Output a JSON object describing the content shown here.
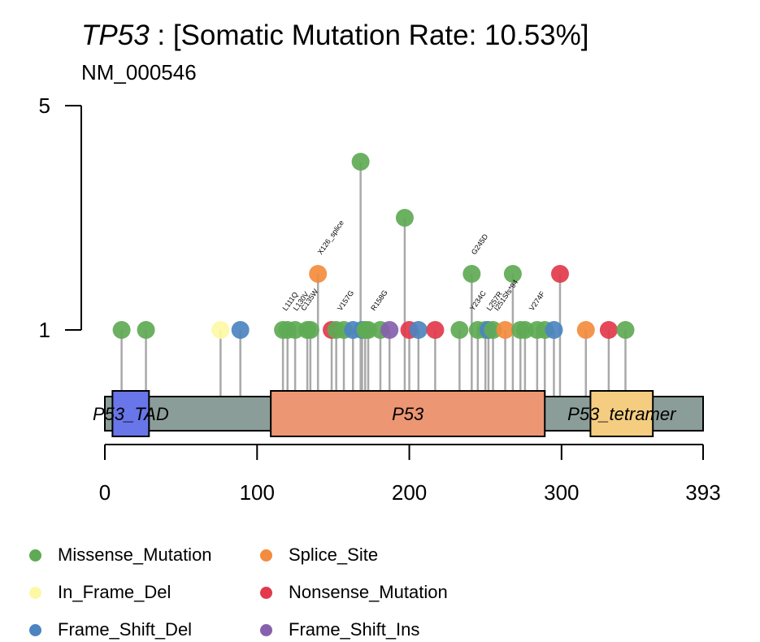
{
  "title": {
    "gene": "TP53",
    "rest": " : [Somatic Mutation Rate: 10.53%]"
  },
  "subtitle": "NM_000546",
  "colors": {
    "Missense_Mutation": "#5faa55",
    "Splice_Site": "#f48b3e",
    "In_Frame_Del": "#fdf8a6",
    "Nonsense_Mutation": "#e2394c",
    "Frame_Shift_Del": "#4c84c0",
    "Frame_Shift_Ins": "#8660ad",
    "backbone": "#8b9d99",
    "stem": "#a9a9a9"
  },
  "legend": [
    {
      "label": "Missense_Mutation",
      "key": "Missense_Mutation"
    },
    {
      "label": "Splice_Site",
      "key": "Splice_Site"
    },
    {
      "label": "In_Frame_Del",
      "key": "In_Frame_Del"
    },
    {
      "label": "Nonsense_Mutation",
      "key": "Nonsense_Mutation"
    },
    {
      "label": "Frame_Shift_Del",
      "key": "Frame_Shift_Del"
    },
    {
      "label": "Frame_Shift_Ins",
      "key": "Frame_Shift_Ins"
    }
  ],
  "chart_data": {
    "type": "lollipop",
    "protein_length": 393,
    "x_ticks": [
      0,
      100,
      200,
      300,
      393
    ],
    "y_ticks": [
      1,
      5
    ],
    "ylim": [
      1,
      5
    ],
    "domains": [
      {
        "label": "P53_TAD",
        "start": 5,
        "end": 29,
        "color": "#6876ea"
      },
      {
        "label": "P53",
        "start": 109,
        "end": 289,
        "color": "#ec9674"
      },
      {
        "label": "P53_tetramer",
        "start": 319,
        "end": 360,
        "color": "#f4cd80"
      }
    ],
    "mutations": [
      {
        "pos": 11,
        "count": 1,
        "type": "Missense_Mutation"
      },
      {
        "pos": 27,
        "count": 1,
        "type": "Missense_Mutation"
      },
      {
        "pos": 76,
        "count": 1,
        "type": "In_Frame_Del"
      },
      {
        "pos": 89,
        "count": 1,
        "type": "Frame_Shift_Del"
      },
      {
        "pos": 117,
        "count": 1,
        "type": "Missense_Mutation"
      },
      {
        "pos": 120,
        "count": 1,
        "type": "Missense_Mutation"
      },
      {
        "pos": 125,
        "count": 1,
        "type": "Missense_Mutation"
      },
      {
        "pos": 133,
        "count": 1,
        "type": "Missense_Mutation"
      },
      {
        "pos": 135,
        "count": 1,
        "type": "Missense_Mutation"
      },
      {
        "pos": 140,
        "count": 2,
        "type": "Splice_Site"
      },
      {
        "pos": 149,
        "count": 1,
        "type": "Nonsense_Mutation"
      },
      {
        "pos": 152,
        "count": 1,
        "type": "Missense_Mutation"
      },
      {
        "pos": 157,
        "count": 1,
        "type": "Missense_Mutation"
      },
      {
        "pos": 163,
        "count": 1,
        "type": "Frame_Shift_Del"
      },
      {
        "pos": 168,
        "count": 4,
        "type": "Missense_Mutation"
      },
      {
        "pos": 169,
        "count": 1,
        "type": "Frame_Shift_Del"
      },
      {
        "pos": 171,
        "count": 1,
        "type": "Missense_Mutation"
      },
      {
        "pos": 173,
        "count": 1,
        "type": "Missense_Mutation"
      },
      {
        "pos": 181,
        "count": 1,
        "type": "Missense_Mutation"
      },
      {
        "pos": 187,
        "count": 1,
        "type": "Frame_Shift_Ins"
      },
      {
        "pos": 197,
        "count": 3,
        "type": "Missense_Mutation"
      },
      {
        "pos": 200,
        "count": 1,
        "type": "Nonsense_Mutation"
      },
      {
        "pos": 206,
        "count": 1,
        "type": "Frame_Shift_Del"
      },
      {
        "pos": 217,
        "count": 1,
        "type": "Nonsense_Mutation"
      },
      {
        "pos": 233,
        "count": 1,
        "type": "Missense_Mutation"
      },
      {
        "pos": 241,
        "count": 2,
        "type": "Missense_Mutation"
      },
      {
        "pos": 245,
        "count": 1,
        "type": "Missense_Mutation"
      },
      {
        "pos": 250,
        "count": 1,
        "type": "Missense_Mutation"
      },
      {
        "pos": 252,
        "count": 1,
        "type": "Frame_Shift_Del"
      },
      {
        "pos": 255,
        "count": 1,
        "type": "Missense_Mutation"
      },
      {
        "pos": 263,
        "count": 1,
        "type": "Splice_Site"
      },
      {
        "pos": 268,
        "count": 2,
        "type": "Missense_Mutation"
      },
      {
        "pos": 273,
        "count": 1,
        "type": "Missense_Mutation"
      },
      {
        "pos": 276,
        "count": 1,
        "type": "Missense_Mutation"
      },
      {
        "pos": 284,
        "count": 1,
        "type": "Missense_Mutation"
      },
      {
        "pos": 289,
        "count": 1,
        "type": "Missense_Mutation"
      },
      {
        "pos": 295,
        "count": 1,
        "type": "Frame_Shift_Del"
      },
      {
        "pos": 299,
        "count": 2,
        "type": "Nonsense_Mutation"
      },
      {
        "pos": 316,
        "count": 1,
        "type": "Splice_Site"
      },
      {
        "pos": 331,
        "count": 1,
        "type": "Nonsense_Mutation"
      },
      {
        "pos": 342,
        "count": 1,
        "type": "Missense_Mutation"
      }
    ],
    "annotations": [
      {
        "label": "L111Q",
        "pos": 117,
        "count": 1
      },
      {
        "label": "L130V",
        "pos": 124,
        "count": 1
      },
      {
        "label": "C135W",
        "pos": 129,
        "count": 1
      },
      {
        "label": "X126_splice",
        "pos": 140,
        "count": 2
      },
      {
        "label": "V157G",
        "pos": 153,
        "count": 1
      },
      {
        "label": "R158G",
        "pos": 175,
        "count": 1
      },
      {
        "label": "G245D",
        "pos": 241,
        "count": 2
      },
      {
        "label": "Y234C",
        "pos": 240,
        "count": 1
      },
      {
        "label": "L257R",
        "pos": 251,
        "count": 1
      },
      {
        "label": "I251Sfs*94",
        "pos": 256,
        "count": 1
      },
      {
        "label": "V274F",
        "pos": 279,
        "count": 1
      }
    ]
  }
}
